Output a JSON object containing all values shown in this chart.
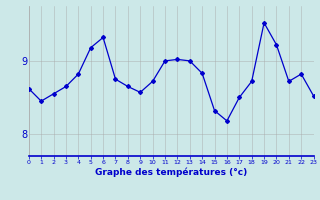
{
  "x": [
    0,
    1,
    2,
    3,
    4,
    5,
    6,
    7,
    8,
    9,
    10,
    11,
    12,
    13,
    14,
    15,
    16,
    17,
    18,
    19,
    20,
    21,
    22,
    23
  ],
  "y": [
    8.62,
    8.45,
    8.55,
    8.65,
    8.82,
    9.18,
    9.32,
    8.75,
    8.65,
    8.57,
    8.72,
    9.0,
    9.02,
    9.0,
    8.83,
    8.32,
    8.18,
    8.5,
    8.72,
    9.52,
    9.22,
    8.72,
    8.82,
    8.52
  ],
  "line_color": "#0000cc",
  "marker": "D",
  "markersize": 2.0,
  "linewidth": 0.9,
  "bg_color": "#cce8e8",
  "grid_color": "#aaaaaa",
  "xlabel": "Graphe des températures (°c)",
  "xlabel_color": "#0000cc",
  "tick_color": "#0000cc",
  "ylim": [
    7.7,
    9.75
  ],
  "yticks": [
    8,
    9
  ],
  "xlim": [
    0,
    23
  ],
  "bottom_spine_color": "#0000cc"
}
